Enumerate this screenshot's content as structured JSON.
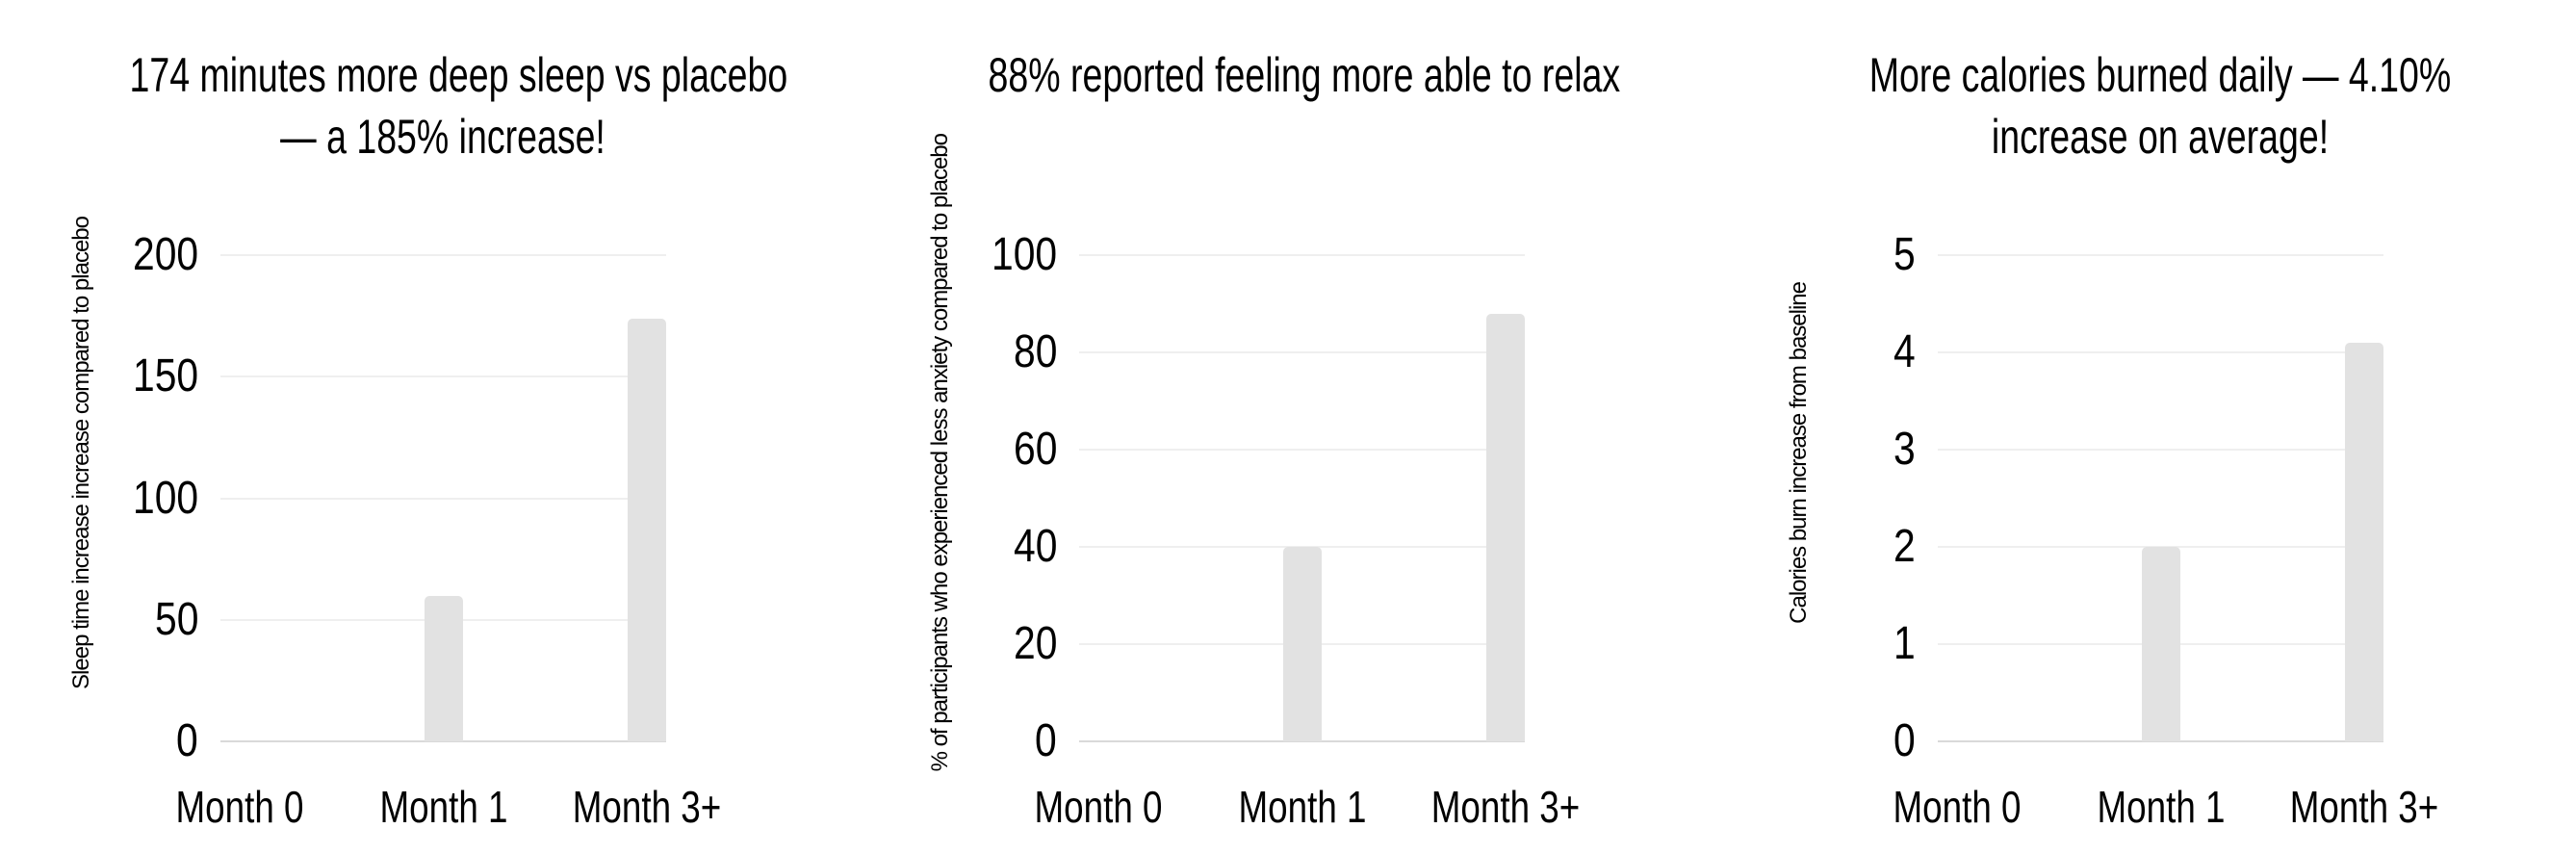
{
  "colors": {
    "background": "#ffffff",
    "text": "#000000",
    "bar": "#e2e2e2",
    "gridline": "#efefef",
    "axis_line": "#d9d9d9"
  },
  "chart_data": [
    {
      "type": "bar",
      "title": "174 minutes more deep sleep vs placebo — a 185% increase!",
      "title_lines": [
        "174 minutes more deep sleep vs placebo",
        "— a 185% increase!"
      ],
      "ylabel": "Sleep time increase increase compared to placebo",
      "xlabel": "",
      "categories": [
        "Month 0",
        "Month 1",
        "Month 3+"
      ],
      "values": [
        0,
        60,
        174
      ],
      "yticks": [
        0,
        50,
        100,
        150,
        200
      ],
      "ylim": [
        0,
        200
      ],
      "grid": true,
      "legend": false
    },
    {
      "type": "bar",
      "title": "88% reported feeling more able to relax",
      "title_lines": [
        "88% reported feeling more able to relax"
      ],
      "ylabel": "% of participants who experienced less anxiety compared to placebo",
      "xlabel": "",
      "categories": [
        "Month 0",
        "Month 1",
        "Month 3+"
      ],
      "values": [
        0,
        40,
        88
      ],
      "yticks": [
        0,
        20,
        40,
        60,
        80,
        100
      ],
      "ylim": [
        0,
        100
      ],
      "grid": true,
      "legend": false
    },
    {
      "type": "bar",
      "title": "More calories burned daily — 4.10% increase on average!",
      "title_lines": [
        "More calories burned daily — 4.10%",
        "increase on average!"
      ],
      "ylabel": "Calories burn increase from baseline",
      "xlabel": "",
      "categories": [
        "Month 0",
        "Month 1",
        "Month 3+"
      ],
      "values": [
        0,
        2,
        4.1
      ],
      "yticks": [
        0,
        1,
        2,
        3,
        4,
        5
      ],
      "ylim": [
        0,
        5
      ],
      "grid": true,
      "legend": false
    }
  ]
}
